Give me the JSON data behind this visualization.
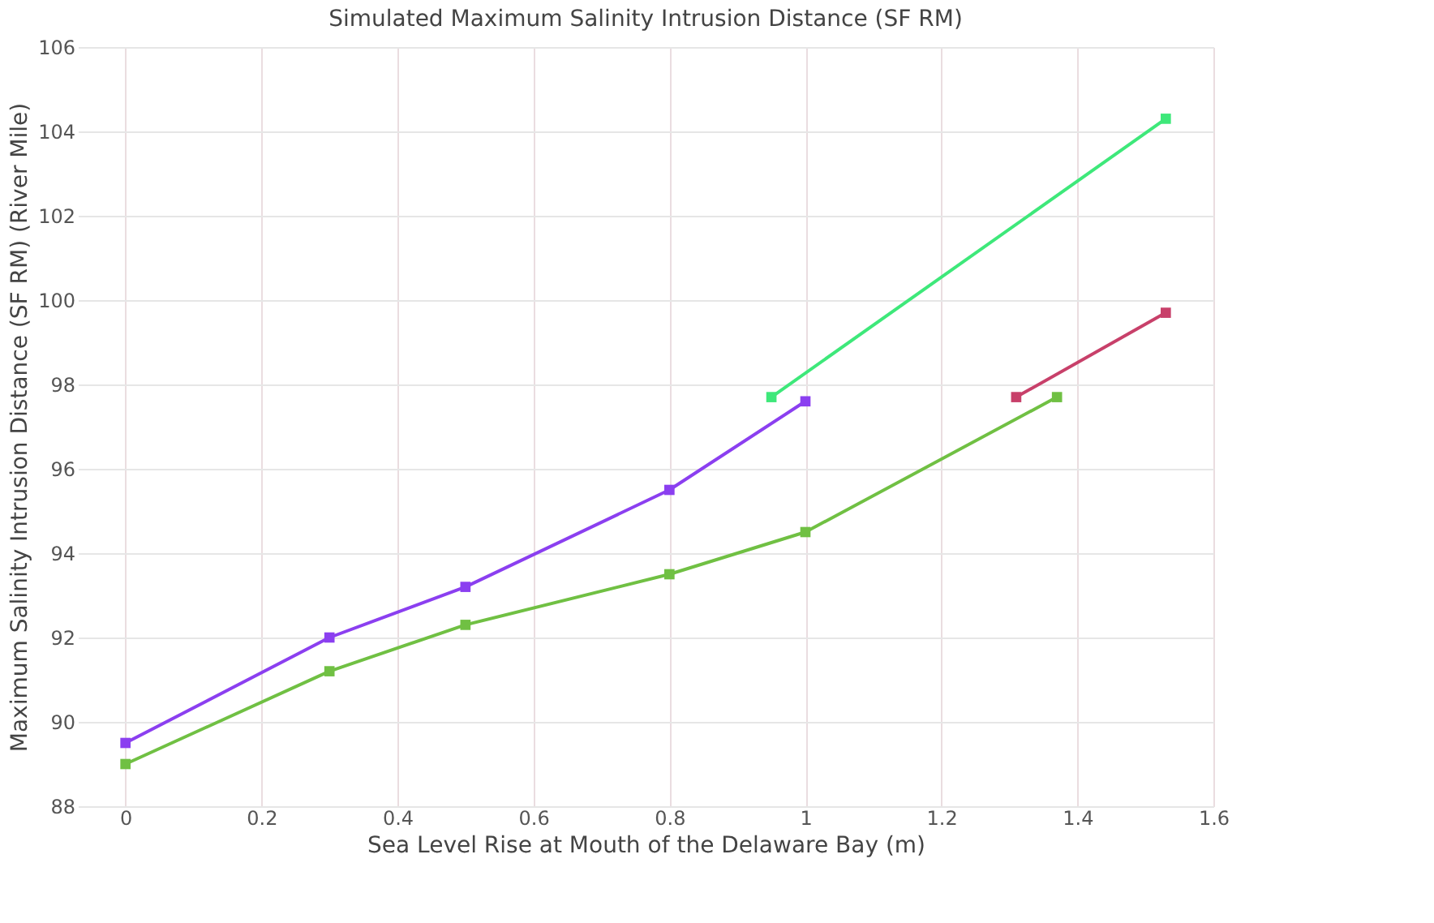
{
  "chart_data": {
    "type": "line",
    "title": "Simulated Maximum Salinity Intrusion Distance (SF RM)",
    "xlabel": "Sea Level Rise at Mouth of the Delaware Bay (m)",
    "ylabel": "Maximum Salinity Intrusion Distance (SF RM) (River Mile)",
    "xlim": [
      -0.07,
      1.6
    ],
    "xticks": [
      0,
      0.2,
      0.4,
      0.6,
      0.8,
      1,
      1.2,
      1.4,
      1.6
    ],
    "ylim": [
      88,
      106
    ],
    "yticks": [
      88,
      90,
      92,
      94,
      96,
      98,
      100,
      102,
      104,
      106
    ],
    "grid": true,
    "marker": "square",
    "line_style": "solid",
    "series": [
      {
        "color": "#8b3ff0",
        "x": [
          0,
          0.3,
          0.5,
          0.8,
          1.0
        ],
        "values": [
          89.5,
          92.0,
          93.2,
          95.5,
          97.6
        ]
      },
      {
        "color": "#70c043",
        "x": [
          0,
          0.3,
          0.5,
          0.8,
          1.0,
          1.37
        ],
        "values": [
          89.0,
          91.2,
          92.3,
          93.5,
          94.5,
          97.7
        ]
      },
      {
        "color": "#3ee87a",
        "x": [
          0.95,
          1.53
        ],
        "values": [
          97.7,
          104.3
        ]
      },
      {
        "color": "#c8406a",
        "x": [
          1.31,
          1.53
        ],
        "values": [
          97.7,
          99.7
        ]
      }
    ]
  }
}
